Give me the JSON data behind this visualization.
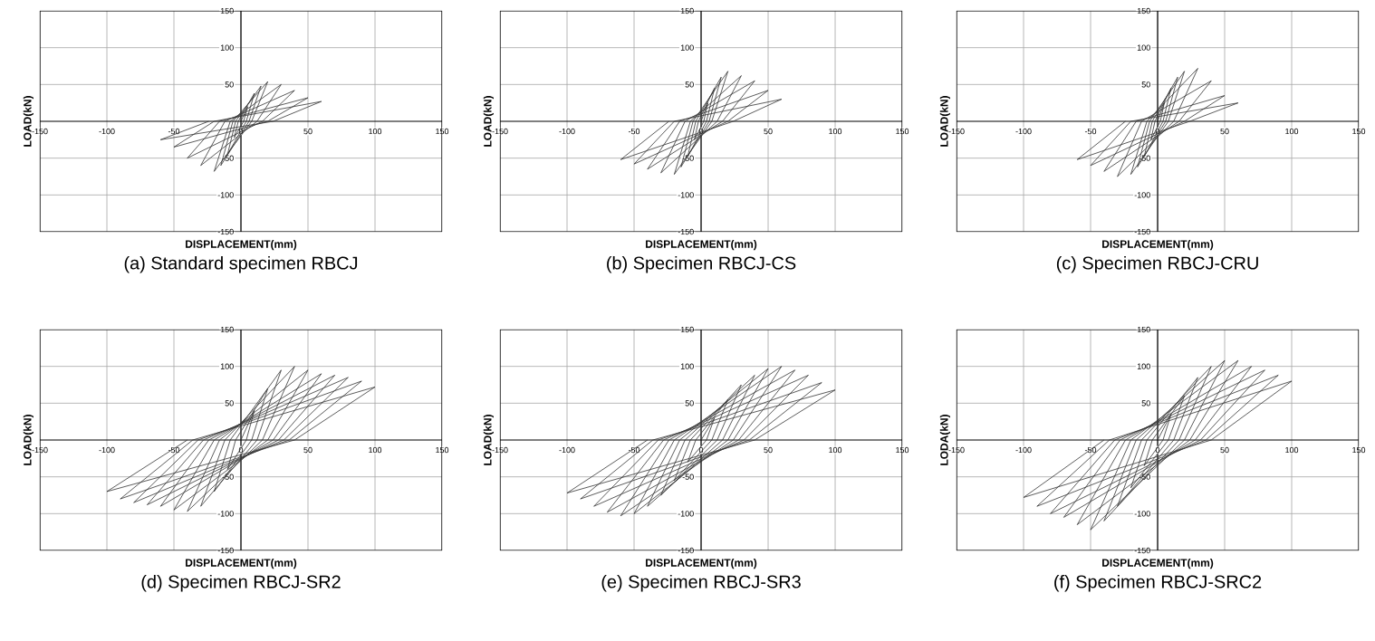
{
  "chart_data": [
    {
      "type": "line",
      "title": "(a) Standard specimen RBCJ",
      "xlabel": "DISPLACEMENT(mm)",
      "ylabel": "LOAD(kN)",
      "xlim": [
        -150,
        150
      ],
      "ylim": [
        -150,
        150
      ],
      "xticks": [
        -150,
        -100,
        -50,
        0,
        50,
        100,
        150
      ],
      "yticks": [
        -150,
        -100,
        -50,
        50,
        100,
        150
      ],
      "grid": true,
      "x": [
        0,
        5,
        2,
        -5,
        -2,
        10,
        4,
        -10,
        -4,
        15,
        6,
        -15,
        -6,
        20,
        8,
        -20,
        -8,
        30,
        12,
        -30,
        -12,
        40,
        16,
        -40,
        -16,
        50,
        20,
        -50,
        -20,
        60,
        24,
        -60,
        -24
      ],
      "series": [
        {
          "color": "#333333",
          "values": [
            0,
            20,
            0,
            -22,
            0,
            38,
            0,
            -45,
            0,
            48,
            0,
            -60,
            0,
            54,
            0,
            -68,
            0,
            50,
            0,
            -60,
            0,
            42,
            0,
            -50,
            0,
            32,
            0,
            -35,
            0,
            27,
            0,
            -25,
            0
          ]
        }
      ]
    },
    {
      "type": "line",
      "title": "(b) Specimen RBCJ-CS",
      "xlabel": "DISPLACEMENT(mm)",
      "ylabel": "LOAD(kN)",
      "xlim": [
        -150,
        150
      ],
      "ylim": [
        -150,
        150
      ],
      "xticks": [
        -150,
        -100,
        -50,
        0,
        50,
        100,
        150
      ],
      "yticks": [
        -150,
        -100,
        -50,
        50,
        100,
        150
      ],
      "grid": true,
      "x": [
        0,
        5,
        2,
        -5,
        -2,
        10,
        4,
        -10,
        -4,
        15,
        6,
        -15,
        -6,
        20,
        8,
        -20,
        -8,
        30,
        12,
        -30,
        -12,
        40,
        16,
        -40,
        -16,
        50,
        20,
        -50,
        -20,
        60,
        24,
        -60,
        -24
      ],
      "series": [
        {
          "color": "#333333",
          "values": [
            0,
            25,
            0,
            -25,
            0,
            45,
            0,
            -48,
            0,
            60,
            0,
            -62,
            0,
            68,
            0,
            -72,
            0,
            62,
            0,
            -70,
            0,
            55,
            0,
            -65,
            0,
            42,
            0,
            -58,
            0,
            30,
            0,
            -52,
            0
          ]
        }
      ]
    },
    {
      "type": "line",
      "title": "(c) Specimen RBCJ-CRU",
      "xlabel": "DISPLACEMENT(mm)",
      "ylabel": "LOAD(kN)",
      "xlim": [
        -150,
        150
      ],
      "ylim": [
        -150,
        150
      ],
      "xticks": [
        -150,
        -100,
        -50,
        0,
        50,
        100,
        150
      ],
      "yticks": [
        -150,
        -100,
        -50,
        50,
        100,
        150
      ],
      "grid": true,
      "x": [
        0,
        5,
        2,
        -5,
        -2,
        10,
        4,
        -10,
        -4,
        15,
        6,
        -15,
        -6,
        20,
        8,
        -20,
        -8,
        30,
        12,
        -30,
        -12,
        40,
        16,
        -40,
        -16,
        50,
        20,
        -50,
        -20,
        60,
        24,
        -60,
        -24
      ],
      "series": [
        {
          "color": "#333333",
          "values": [
            0,
            25,
            0,
            -25,
            0,
            45,
            0,
            -48,
            0,
            60,
            0,
            -62,
            0,
            68,
            0,
            -72,
            0,
            72,
            0,
            -75,
            0,
            55,
            0,
            -68,
            0,
            35,
            0,
            -60,
            0,
            25,
            0,
            -52,
            0
          ]
        }
      ]
    },
    {
      "type": "line",
      "title": "(d) Specimen RBCJ-SR2",
      "xlabel": "DISPLACEMENT(mm)",
      "ylabel": "LOAD(kN)",
      "xlim": [
        -150,
        150
      ],
      "ylim": [
        -150,
        150
      ],
      "xticks": [
        -150,
        -100,
        -50,
        0,
        50,
        100,
        150
      ],
      "yticks": [
        -150,
        -100,
        -50,
        50,
        100,
        150
      ],
      "grid": true,
      "x": [
        0,
        10,
        4,
        -10,
        -4,
        20,
        8,
        -20,
        -8,
        30,
        12,
        -30,
        -12,
        40,
        16,
        -40,
        -16,
        50,
        20,
        -50,
        -20,
        60,
        24,
        -60,
        -24,
        70,
        28,
        -70,
        -28,
        80,
        32,
        -80,
        -32,
        90,
        36,
        -90,
        -36,
        100,
        40,
        -100,
        -40
      ],
      "series": [
        {
          "color": "#333333",
          "values": [
            0,
            40,
            0,
            -40,
            0,
            70,
            0,
            -70,
            0,
            95,
            0,
            -90,
            0,
            100,
            0,
            -97,
            0,
            95,
            0,
            -95,
            0,
            90,
            0,
            -90,
            0,
            88,
            0,
            -88,
            0,
            85,
            0,
            -85,
            0,
            80,
            0,
            -80,
            0,
            72,
            0,
            -70,
            0
          ]
        }
      ]
    },
    {
      "type": "line",
      "title": "(e) Specimen RBCJ-SR3",
      "xlabel": "DISPLACEMENT(mm)",
      "ylabel": "LOAD(kN)",
      "xlim": [
        -150,
        150
      ],
      "ylim": [
        -150,
        150
      ],
      "xticks": [
        -150,
        -100,
        -50,
        0,
        50,
        100,
        150
      ],
      "yticks": [
        -150,
        -100,
        -50,
        50,
        100,
        150
      ],
      "grid": true,
      "x": [
        0,
        10,
        4,
        -10,
        -4,
        20,
        8,
        -20,
        -8,
        30,
        12,
        -30,
        -12,
        40,
        16,
        -40,
        -16,
        50,
        20,
        -50,
        -20,
        60,
        24,
        -60,
        -24,
        70,
        28,
        -70,
        -28,
        80,
        32,
        -80,
        -32,
        90,
        36,
        -90,
        -36,
        100,
        40,
        -100,
        -40
      ],
      "series": [
        {
          "color": "#333333",
          "values": [
            0,
            30,
            0,
            -30,
            0,
            55,
            0,
            -55,
            0,
            75,
            0,
            -75,
            0,
            88,
            0,
            -90,
            0,
            97,
            0,
            -100,
            0,
            100,
            0,
            -103,
            0,
            95,
            0,
            -98,
            0,
            88,
            0,
            -90,
            0,
            78,
            0,
            -80,
            0,
            68,
            0,
            -72,
            0
          ]
        }
      ]
    },
    {
      "type": "line",
      "title": "(f) Specimen RBCJ-SRC2",
      "xlabel": "DISPLACEMENT(mm)",
      "ylabel": "LODA(kN)",
      "xlim": [
        -150,
        150
      ],
      "ylim": [
        -150,
        150
      ],
      "xticks": [
        -150,
        -100,
        -50,
        0,
        50,
        100,
        150
      ],
      "yticks": [
        -150,
        -100,
        -50,
        50,
        100,
        150
      ],
      "grid": true,
      "x": [
        0,
        10,
        4,
        -10,
        -4,
        20,
        8,
        -20,
        -8,
        30,
        12,
        -30,
        -12,
        40,
        16,
        -40,
        -16,
        50,
        20,
        -50,
        -20,
        60,
        24,
        -60,
        -24,
        70,
        28,
        -70,
        -28,
        80,
        32,
        -80,
        -32,
        90,
        36,
        -90,
        -36,
        100,
        40,
        -100,
        -40
      ],
      "series": [
        {
          "color": "#333333",
          "values": [
            0,
            35,
            0,
            -35,
            0,
            60,
            0,
            -65,
            0,
            85,
            0,
            -90,
            0,
            100,
            0,
            -110,
            0,
            108,
            0,
            -122,
            0,
            108,
            0,
            -115,
            0,
            100,
            0,
            -105,
            0,
            95,
            0,
            -100,
            0,
            88,
            0,
            -90,
            0,
            80,
            0,
            -78,
            0
          ]
        }
      ]
    }
  ]
}
